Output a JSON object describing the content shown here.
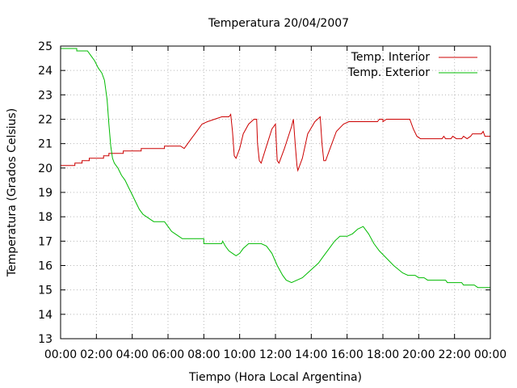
{
  "chart_data": {
    "type": "line",
    "title": "Temperatura 20/04/2007",
    "xlabel": "Tiempo (Hora Local Argentina)",
    "ylabel": "Temperatura (Grados Celsius)",
    "xlim": [
      0,
      24
    ],
    "ylim": [
      13,
      25
    ],
    "x_ticks": [
      0,
      2,
      4,
      6,
      8,
      10,
      12,
      14,
      16,
      18,
      20,
      22,
      24
    ],
    "x_tick_labels": [
      "00:00",
      "02:00",
      "04:00",
      "06:00",
      "08:00",
      "10:00",
      "12:00",
      "14:00",
      "16:00",
      "18:00",
      "20:00",
      "22:00",
      "00:00"
    ],
    "y_ticks": [
      13,
      14,
      15,
      16,
      17,
      18,
      19,
      20,
      21,
      22,
      23,
      24,
      25
    ],
    "y_tick_labels": [
      "13",
      "14",
      "15",
      "16",
      "17",
      "18",
      "19",
      "20",
      "21",
      "22",
      "23",
      "24",
      "25"
    ],
    "grid": true,
    "legend_position": "top-right",
    "series": [
      {
        "name": "Temp. Interior",
        "color": "#cc0000",
        "points": [
          [
            0,
            20.1
          ],
          [
            0.8,
            20.1
          ],
          [
            0.8,
            20.2
          ],
          [
            1.2,
            20.2
          ],
          [
            1.2,
            20.3
          ],
          [
            1.6,
            20.3
          ],
          [
            1.6,
            20.4
          ],
          [
            2.4,
            20.4
          ],
          [
            2.4,
            20.5
          ],
          [
            2.7,
            20.5
          ],
          [
            2.7,
            20.6
          ],
          [
            3.5,
            20.6
          ],
          [
            3.5,
            20.7
          ],
          [
            4.5,
            20.7
          ],
          [
            4.5,
            20.8
          ],
          [
            5.8,
            20.8
          ],
          [
            5.8,
            20.9
          ],
          [
            6.7,
            20.9
          ],
          [
            6.9,
            20.8
          ],
          [
            7.1,
            21.0
          ],
          [
            7.3,
            21.2
          ],
          [
            7.5,
            21.4
          ],
          [
            7.7,
            21.6
          ],
          [
            7.9,
            21.8
          ],
          [
            8.2,
            21.9
          ],
          [
            8.6,
            22.0
          ],
          [
            9.0,
            22.1
          ],
          [
            9.4,
            22.1
          ],
          [
            9.5,
            22.2
          ],
          [
            9.6,
            21.5
          ],
          [
            9.7,
            20.5
          ],
          [
            9.8,
            20.4
          ],
          [
            10.0,
            20.8
          ],
          [
            10.2,
            21.4
          ],
          [
            10.5,
            21.8
          ],
          [
            10.8,
            22.0
          ],
          [
            10.95,
            22.0
          ],
          [
            11.0,
            21.0
          ],
          [
            11.1,
            20.3
          ],
          [
            11.2,
            20.2
          ],
          [
            11.5,
            20.9
          ],
          [
            11.8,
            21.6
          ],
          [
            12.0,
            21.8
          ],
          [
            12.05,
            21.0
          ],
          [
            12.1,
            20.3
          ],
          [
            12.2,
            20.2
          ],
          [
            12.5,
            20.8
          ],
          [
            12.9,
            21.7
          ],
          [
            13.0,
            22.0
          ],
          [
            13.1,
            21.0
          ],
          [
            13.2,
            20.1
          ],
          [
            13.25,
            19.9
          ],
          [
            13.5,
            20.4
          ],
          [
            13.8,
            21.4
          ],
          [
            14.2,
            21.9
          ],
          [
            14.5,
            22.1
          ],
          [
            14.6,
            21.0
          ],
          [
            14.7,
            20.3
          ],
          [
            14.8,
            20.3
          ],
          [
            15.1,
            20.9
          ],
          [
            15.4,
            21.5
          ],
          [
            15.8,
            21.8
          ],
          [
            16.1,
            21.9
          ],
          [
            17.7,
            21.9
          ],
          [
            17.8,
            22.0
          ],
          [
            18.0,
            22.0
          ],
          [
            18.0,
            21.9
          ],
          [
            18.2,
            22.0
          ],
          [
            19.5,
            22.0
          ],
          [
            19.7,
            21.6
          ],
          [
            19.9,
            21.3
          ],
          [
            20.1,
            21.2
          ],
          [
            21.3,
            21.2
          ],
          [
            21.4,
            21.3
          ],
          [
            21.5,
            21.2
          ],
          [
            21.8,
            21.2
          ],
          [
            21.9,
            21.3
          ],
          [
            22.1,
            21.2
          ],
          [
            22.4,
            21.2
          ],
          [
            22.5,
            21.3
          ],
          [
            22.7,
            21.2
          ],
          [
            22.9,
            21.3
          ],
          [
            23.0,
            21.4
          ],
          [
            23.5,
            21.4
          ],
          [
            23.6,
            21.5
          ],
          [
            23.7,
            21.3
          ],
          [
            23.8,
            21.3
          ],
          [
            24.0,
            21.3
          ]
        ]
      },
      {
        "name": "Temp. Exterior",
        "color": "#00bb00",
        "points": [
          [
            0,
            24.9
          ],
          [
            0.9,
            24.9
          ],
          [
            0.9,
            24.8
          ],
          [
            1.5,
            24.8
          ],
          [
            1.7,
            24.6
          ],
          [
            1.9,
            24.4
          ],
          [
            2.1,
            24.1
          ],
          [
            2.3,
            23.9
          ],
          [
            2.45,
            23.6
          ],
          [
            2.6,
            22.8
          ],
          [
            2.7,
            21.8
          ],
          [
            2.8,
            20.9
          ],
          [
            2.9,
            20.4
          ],
          [
            3.0,
            20.2
          ],
          [
            3.2,
            20.0
          ],
          [
            3.4,
            19.7
          ],
          [
            3.6,
            19.5
          ],
          [
            3.8,
            19.2
          ],
          [
            4.0,
            18.9
          ],
          [
            4.2,
            18.6
          ],
          [
            4.4,
            18.3
          ],
          [
            4.6,
            18.1
          ],
          [
            4.8,
            18.0
          ],
          [
            5.0,
            17.9
          ],
          [
            5.2,
            17.8
          ],
          [
            5.8,
            17.8
          ],
          [
            6.0,
            17.6
          ],
          [
            6.2,
            17.4
          ],
          [
            6.4,
            17.3
          ],
          [
            6.6,
            17.2
          ],
          [
            6.8,
            17.1
          ],
          [
            8.0,
            17.1
          ],
          [
            8.0,
            16.9
          ],
          [
            9.0,
            16.9
          ],
          [
            9.05,
            17.0
          ],
          [
            9.2,
            16.8
          ],
          [
            9.4,
            16.6
          ],
          [
            9.6,
            16.5
          ],
          [
            9.8,
            16.4
          ],
          [
            10.0,
            16.5
          ],
          [
            10.2,
            16.7
          ],
          [
            10.5,
            16.9
          ],
          [
            11.2,
            16.9
          ],
          [
            11.5,
            16.8
          ],
          [
            11.8,
            16.5
          ],
          [
            12.1,
            16.0
          ],
          [
            12.4,
            15.6
          ],
          [
            12.6,
            15.4
          ],
          [
            12.9,
            15.3
          ],
          [
            13.2,
            15.4
          ],
          [
            13.5,
            15.5
          ],
          [
            13.8,
            15.7
          ],
          [
            14.1,
            15.9
          ],
          [
            14.4,
            16.1
          ],
          [
            14.7,
            16.4
          ],
          [
            15.0,
            16.7
          ],
          [
            15.3,
            17.0
          ],
          [
            15.6,
            17.2
          ],
          [
            16.0,
            17.2
          ],
          [
            16.3,
            17.3
          ],
          [
            16.6,
            17.5
          ],
          [
            16.9,
            17.6
          ],
          [
            17.2,
            17.3
          ],
          [
            17.5,
            16.9
          ],
          [
            17.8,
            16.6
          ],
          [
            18.2,
            16.3
          ],
          [
            18.6,
            16.0
          ],
          [
            19.1,
            15.7
          ],
          [
            19.4,
            15.6
          ],
          [
            19.8,
            15.6
          ],
          [
            20.0,
            15.5
          ],
          [
            20.3,
            15.5
          ],
          [
            20.5,
            15.4
          ],
          [
            21.5,
            15.4
          ],
          [
            21.6,
            15.3
          ],
          [
            22.4,
            15.3
          ],
          [
            22.5,
            15.2
          ],
          [
            23.1,
            15.2
          ],
          [
            23.3,
            15.1
          ],
          [
            24.0,
            15.1
          ]
        ]
      }
    ]
  }
}
